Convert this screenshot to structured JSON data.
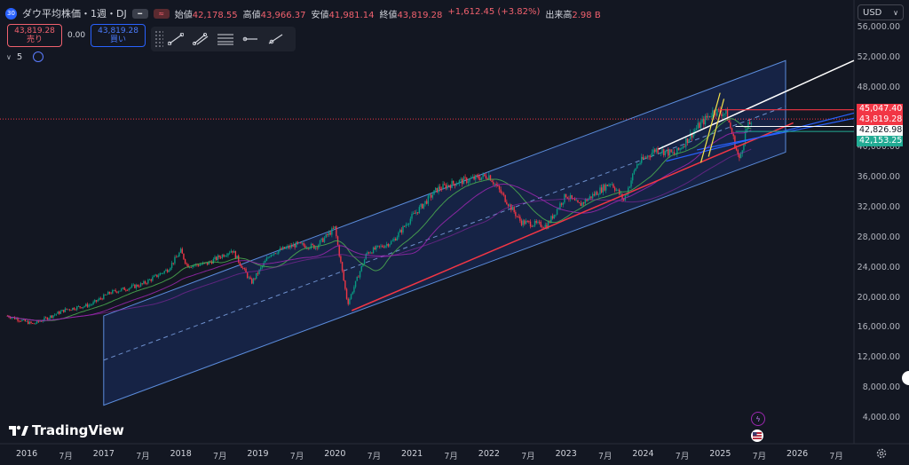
{
  "header": {
    "badge": "30",
    "title": "ダウ平均株価・1週・DJ",
    "ohlc": [
      {
        "k": "始値",
        "v": "42,178.55"
      },
      {
        "k": "高値",
        "v": "43,966.37"
      },
      {
        "k": "安値",
        "v": "41,981.14"
      },
      {
        "k": "終値",
        "v": "43,819.28"
      }
    ],
    "change": "+1,612.45 (+3.82%)",
    "volume_label": "出来高",
    "volume": "2.98 B"
  },
  "trade": {
    "sell_price": "43,819.28",
    "sell_label": "売り",
    "spread": "0.00",
    "buy_price": "43,819.28",
    "buy_label": "買い"
  },
  "indicator": {
    "count": "5"
  },
  "currency": "USD",
  "y_ticks": [
    "56,000.00",
    "52,000.00",
    "48,000.00",
    "44,000.00",
    "40,000.00",
    "36,000.00",
    "32,000.00",
    "28,000.00",
    "24,000.00",
    "20,000.00",
    "16,000.00",
    "12,000.00",
    "8,000.00",
    "4,000.00"
  ],
  "x_ticks": [
    {
      "t": "2016",
      "yr": true
    },
    {
      "t": "7月",
      "yr": false
    },
    {
      "t": "2017",
      "yr": true
    },
    {
      "t": "7月",
      "yr": false
    },
    {
      "t": "2018",
      "yr": true
    },
    {
      "t": "7月",
      "yr": false
    },
    {
      "t": "2019",
      "yr": true
    },
    {
      "t": "7月",
      "yr": false
    },
    {
      "t": "2020",
      "yr": true
    },
    {
      "t": "7月",
      "yr": false
    },
    {
      "t": "2021",
      "yr": true
    },
    {
      "t": "7月",
      "yr": false
    },
    {
      "t": "2022",
      "yr": true
    },
    {
      "t": "7月",
      "yr": false
    },
    {
      "t": "2023",
      "yr": true
    },
    {
      "t": "7月",
      "yr": false
    },
    {
      "t": "2024",
      "yr": true
    },
    {
      "t": "7月",
      "yr": false
    },
    {
      "t": "2025",
      "yr": true
    },
    {
      "t": "7月",
      "yr": false
    },
    {
      "t": "2026",
      "yr": true
    },
    {
      "t": "7月",
      "yr": false
    }
  ],
  "price_tags": [
    {
      "v": "45,047.40",
      "color": "#f23645"
    },
    {
      "v": "43,819.28",
      "color": "#f23645"
    },
    {
      "v": "42,826.98",
      "color": "#ffffff"
    },
    {
      "v": "42,153.25",
      "color": "#22ab94"
    }
  ],
  "logo": "TradingView",
  "colors": {
    "up": "#089981",
    "down": "#f23645",
    "channel": "#2962ff",
    "ma_green": "#4caf50",
    "ma_purple": "#9c27b0"
  },
  "chart_data": {
    "type": "candlestick",
    "timeframe": "weekly",
    "ylim": [
      0,
      58000
    ],
    "xlim": [
      "2015-10",
      "2026-12"
    ],
    "series": [
      {
        "values": [
          [
            "2015-10",
            17600
          ],
          [
            "2016-02",
            16500
          ],
          [
            "2016-07",
            18400
          ],
          [
            "2016-11",
            19100
          ],
          [
            "2017-02",
            20700
          ],
          [
            "2017-07",
            21800
          ],
          [
            "2017-11",
            23800
          ],
          [
            "2018-01",
            26200
          ],
          [
            "2018-02",
            24300
          ],
          [
            "2018-05",
            24500
          ],
          [
            "2018-09",
            26400
          ],
          [
            "2018-12",
            22000
          ],
          [
            "2019-03",
            25900
          ],
          [
            "2019-07",
            27100
          ],
          [
            "2019-10",
            26800
          ],
          [
            "2020-01",
            29300
          ],
          [
            "2020-03",
            19200
          ],
          [
            "2020-06",
            26000
          ],
          [
            "2020-10",
            27500
          ],
          [
            "2021-01",
            30800
          ],
          [
            "2021-05",
            34500
          ],
          [
            "2021-08",
            35400
          ],
          [
            "2022-01",
            36300
          ],
          [
            "2022-06",
            30100
          ],
          [
            "2022-10",
            29600
          ],
          [
            "2023-01",
            33700
          ],
          [
            "2023-03",
            32300
          ],
          [
            "2023-08",
            35400
          ],
          [
            "2023-10",
            33000
          ],
          [
            "2023-12",
            37700
          ],
          [
            "2024-03",
            39800
          ],
          [
            "2024-06",
            39100
          ],
          [
            "2024-09",
            42300
          ],
          [
            "2024-12",
            44900
          ],
          [
            "2025-02",
            44500
          ],
          [
            "2025-04",
            38300
          ],
          [
            "2025-05",
            42200
          ],
          [
            "2025-06",
            43819
          ]
        ]
      }
    ],
    "annotations": [
      "rising blue channel from 2017 to 2026",
      "red rising support trendline from 2020 low",
      "white trendline from 2024"
    ]
  }
}
